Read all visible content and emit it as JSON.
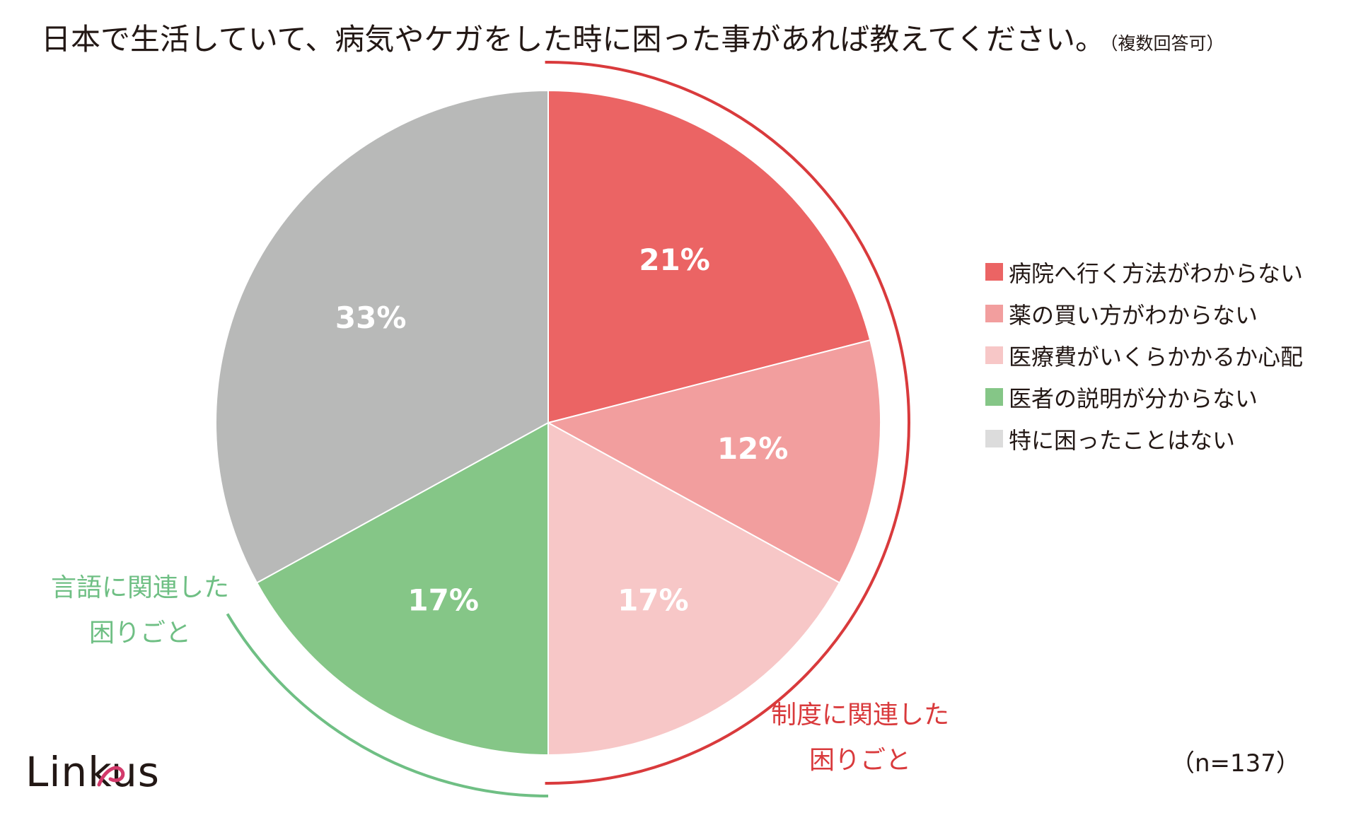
{
  "title": "日本で生活していて、病気やケガをした時に困った事があれば教えてください。",
  "title_note": "（複数回答可）",
  "sample_size": "（n=137）",
  "logo": "Linkus",
  "chart_data": {
    "type": "pie",
    "start_angle_deg": 0,
    "direction": "clockwise",
    "slices": [
      {
        "label": "病院へ行く方法がわからない",
        "value": 21,
        "display": "21%",
        "color": "#EB6464"
      },
      {
        "label": "薬の買い方がわからない",
        "value": 12,
        "display": "12%",
        "color": "#F29E9E"
      },
      {
        "label": "医療費がいくらかかるか心配",
        "value": 17,
        "display": "17%",
        "color": "#F7C7C7"
      },
      {
        "label": "医者の説明が分からない",
        "value": 17,
        "display": "17%",
        "color": "#85C687"
      },
      {
        "label": "特に困ったことはない",
        "value": 33,
        "display": "33%",
        "color": "#B8B9B8"
      }
    ],
    "legend_swatch_colors": [
      "#EB6464",
      "#F29E9E",
      "#F7C7C7",
      "#85C687",
      "#DCDCDC"
    ],
    "legend_position": "right",
    "groups": [
      {
        "label_lines": [
          "制度に関連した",
          "困りごと"
        ],
        "color": "#D93A3C",
        "slices": [
          0,
          1,
          2
        ]
      },
      {
        "label_lines": [
          "言語に関連した",
          "困りごと"
        ],
        "color": "#6FBF84",
        "slices": [
          3
        ]
      }
    ]
  }
}
